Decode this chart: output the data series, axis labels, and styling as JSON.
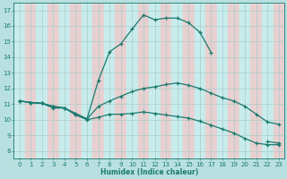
{
  "xlabel": "Humidex (Indice chaleur)",
  "bg_color": "#b8e0e0",
  "grid_color_a": "#c8ecec",
  "grid_color_b": "#e8d0d0",
  "line_color": "#1a7a6e",
  "xlim": [
    -0.5,
    23.5
  ],
  "ylim": [
    7.5,
    17.5
  ],
  "xticks": [
    0,
    1,
    2,
    3,
    4,
    5,
    6,
    7,
    8,
    9,
    10,
    11,
    12,
    13,
    14,
    15,
    16,
    17,
    18,
    19,
    20,
    21,
    22,
    23
  ],
  "yticks": [
    8,
    9,
    10,
    11,
    12,
    13,
    14,
    15,
    16,
    17
  ],
  "series": [
    {
      "x": [
        0,
        1,
        2,
        3,
        4,
        5,
        6,
        7,
        8,
        9,
        10,
        11,
        12,
        13,
        14,
        15,
        16,
        17,
        18,
        19,
        20,
        21,
        22,
        23
      ],
      "y": [
        11.2,
        11.1,
        11.05,
        10.85,
        10.75,
        10.4,
        10.05,
        12.5,
        14.35,
        14.85,
        15.8,
        16.7,
        16.4,
        16.5,
        16.5,
        16.2,
        15.6,
        14.3,
        null,
        null,
        null,
        null,
        8.6,
        8.5
      ]
    },
    {
      "x": [
        0,
        1,
        2,
        3,
        4,
        5,
        6,
        7,
        8,
        9,
        10,
        11,
        12,
        13,
        14,
        15,
        16,
        17,
        18,
        19,
        20,
        21,
        22,
        23
      ],
      "y": [
        11.2,
        11.1,
        11.05,
        10.85,
        10.75,
        10.35,
        10.05,
        10.85,
        11.2,
        11.5,
        11.8,
        12.0,
        12.1,
        12.25,
        12.35,
        12.2,
        12.0,
        11.7,
        11.4,
        11.2,
        10.85,
        10.35,
        9.85,
        9.7
      ]
    },
    {
      "x": [
        0,
        1,
        2,
        3,
        4,
        5,
        6,
        7,
        8,
        9,
        10,
        11,
        12,
        13,
        14,
        15,
        16,
        17,
        18,
        19,
        20,
        21,
        22,
        23
      ],
      "y": [
        11.2,
        11.1,
        11.05,
        10.75,
        10.75,
        10.3,
        10.0,
        10.15,
        10.35,
        10.35,
        10.4,
        10.5,
        10.4,
        10.3,
        10.2,
        10.1,
        9.9,
        9.65,
        9.4,
        9.15,
        8.8,
        8.5,
        8.4,
        8.4
      ]
    }
  ]
}
